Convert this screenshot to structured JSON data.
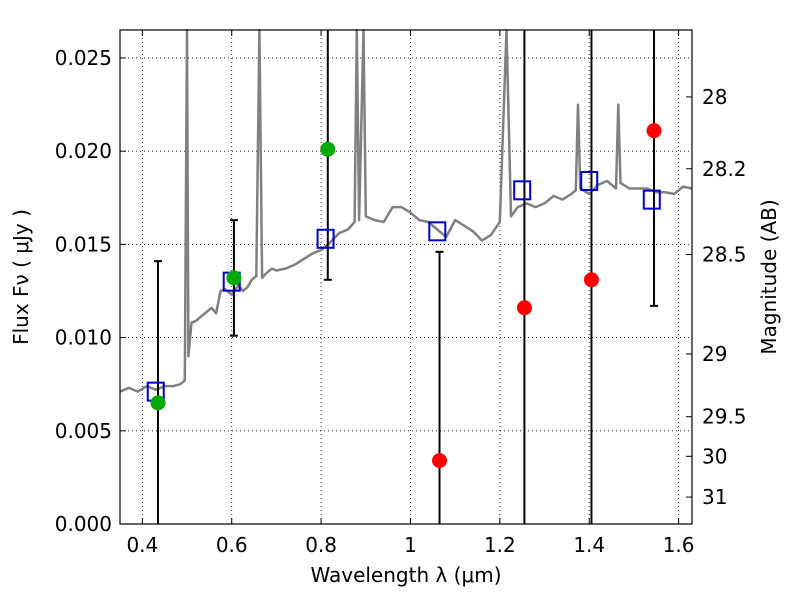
{
  "chart_data": {
    "type": "scatter",
    "xlabel": "Wavelength  λ (μm)",
    "ylabel": "Flux  Fν  ( μJy )",
    "ylabel_right": "Magnitude (AB)",
    "xlim": [
      0.35,
      1.63
    ],
    "ylim": [
      0.0,
      0.0265
    ],
    "grid": true,
    "x_ticks": [
      {
        "value": 0.4,
        "label": "0.4"
      },
      {
        "value": 0.6,
        "label": "0.6"
      },
      {
        "value": 0.8,
        "label": "0.8"
      },
      {
        "value": 1.0,
        "label": "1"
      },
      {
        "value": 1.2,
        "label": "1.2"
      },
      {
        "value": 1.4,
        "label": "1.4"
      },
      {
        "value": 1.6,
        "label": "1.6"
      }
    ],
    "y_ticks": [
      {
        "value": 0.0,
        "label": "0.000"
      },
      {
        "value": 0.005,
        "label": "0.005"
      },
      {
        "value": 0.01,
        "label": "0.010"
      },
      {
        "value": 0.015,
        "label": "0.015"
      },
      {
        "value": 0.02,
        "label": "0.020"
      },
      {
        "value": 0.025,
        "label": "0.025"
      }
    ],
    "right_ticks": [
      {
        "value": 28.0,
        "label": "28"
      },
      {
        "value": 28.2,
        "label": "28.2"
      },
      {
        "value": 28.5,
        "label": "28.5"
      },
      {
        "value": 29.0,
        "label": "29"
      },
      {
        "value": 29.5,
        "label": "29.5"
      },
      {
        "value": 30.0,
        "label": "30"
      },
      {
        "value": 31.0,
        "label": "31"
      }
    ],
    "spectrum": {
      "color": "#808080",
      "points": [
        [
          0.35,
          0.0071
        ],
        [
          0.37,
          0.0073
        ],
        [
          0.39,
          0.0071
        ],
        [
          0.41,
          0.0074
        ],
        [
          0.43,
          0.0072
        ],
        [
          0.45,
          0.0074
        ],
        [
          0.47,
          0.0074
        ],
        [
          0.485,
          0.0075
        ],
        [
          0.495,
          0.0077
        ],
        [
          0.5,
          0.0265
        ],
        [
          0.503,
          0.009
        ],
        [
          0.51,
          0.0108
        ],
        [
          0.52,
          0.0109
        ],
        [
          0.53,
          0.0111
        ],
        [
          0.54,
          0.0113
        ],
        [
          0.555,
          0.0116
        ],
        [
          0.565,
          0.0113
        ],
        [
          0.575,
          0.0125
        ],
        [
          0.585,
          0.0126
        ],
        [
          0.6,
          0.0123
        ],
        [
          0.615,
          0.0128
        ],
        [
          0.625,
          0.0125
        ],
        [
          0.635,
          0.0127
        ],
        [
          0.645,
          0.0131
        ],
        [
          0.655,
          0.0133
        ],
        [
          0.662,
          0.0265
        ],
        [
          0.668,
          0.0132
        ],
        [
          0.675,
          0.0134
        ],
        [
          0.69,
          0.0137
        ],
        [
          0.7,
          0.0136
        ],
        [
          0.72,
          0.0137
        ],
        [
          0.74,
          0.0139
        ],
        [
          0.76,
          0.0142
        ],
        [
          0.78,
          0.0145
        ],
        [
          0.8,
          0.0147
        ],
        [
          0.82,
          0.0151
        ],
        [
          0.84,
          0.0156
        ],
        [
          0.86,
          0.0158
        ],
        [
          0.875,
          0.0162
        ],
        [
          0.88,
          0.0265
        ],
        [
          0.885,
          0.0163
        ],
        [
          0.895,
          0.0265
        ],
        [
          0.9,
          0.0165
        ],
        [
          0.92,
          0.0163
        ],
        [
          0.94,
          0.0162
        ],
        [
          0.96,
          0.017
        ],
        [
          0.98,
          0.017
        ],
        [
          1.0,
          0.0167
        ],
        [
          1.02,
          0.0163
        ],
        [
          1.04,
          0.0162
        ],
        [
          1.06,
          0.0158
        ],
        [
          1.08,
          0.0154
        ],
        [
          1.1,
          0.0163
        ],
        [
          1.12,
          0.016
        ],
        [
          1.14,
          0.0157
        ],
        [
          1.16,
          0.0152
        ],
        [
          1.18,
          0.0155
        ],
        [
          1.2,
          0.0162
        ],
        [
          1.215,
          0.0265
        ],
        [
          1.225,
          0.0165
        ],
        [
          1.24,
          0.017
        ],
        [
          1.26,
          0.0172
        ],
        [
          1.28,
          0.017
        ],
        [
          1.3,
          0.0172
        ],
        [
          1.32,
          0.0176
        ],
        [
          1.34,
          0.0174
        ],
        [
          1.36,
          0.0177
        ],
        [
          1.37,
          0.0179
        ],
        [
          1.375,
          0.0225
        ],
        [
          1.38,
          0.018
        ],
        [
          1.4,
          0.0177
        ],
        [
          1.42,
          0.0182
        ],
        [
          1.44,
          0.0184
        ],
        [
          1.46,
          0.018
        ],
        [
          1.465,
          0.0225
        ],
        [
          1.47,
          0.0183
        ],
        [
          1.49,
          0.018
        ],
        [
          1.51,
          0.018
        ],
        [
          1.53,
          0.018
        ],
        [
          1.55,
          0.0178
        ],
        [
          1.57,
          0.0178
        ],
        [
          1.59,
          0.0177
        ],
        [
          1.61,
          0.0181
        ],
        [
          1.63,
          0.018
        ]
      ]
    },
    "series": [
      {
        "marker": "open-square",
        "color": "#0000cc",
        "points": [
          {
            "x": 0.43,
            "y": 0.0071
          },
          {
            "x": 0.6,
            "y": 0.013
          },
          {
            "x": 0.81,
            "y": 0.0153
          },
          {
            "x": 1.06,
            "y": 0.0157
          },
          {
            "x": 1.25,
            "y": 0.0179
          },
          {
            "x": 1.4,
            "y": 0.0184
          },
          {
            "x": 1.54,
            "y": 0.0174
          }
        ]
      },
      {
        "marker": "filled-circle",
        "color": "#00aa00",
        "points": [
          {
            "x": 0.435,
            "y": 0.0065,
            "err": [
              0.0,
              0.0141
            ]
          },
          {
            "x": 0.605,
            "y": 0.0132,
            "err": [
              0.0101,
              0.0163
            ]
          },
          {
            "x": 0.815,
            "y": 0.0201,
            "err": [
              0.0131,
              0.0265
            ]
          }
        ]
      },
      {
        "marker": "filled-circle",
        "color": "#ff0000",
        "points": [
          {
            "x": 1.065,
            "y": 0.0034,
            "err": [
              0.0,
              0.0146
            ]
          },
          {
            "x": 1.255,
            "y": 0.0116,
            "err": [
              0.0,
              0.0265
            ]
          },
          {
            "x": 1.405,
            "y": 0.0131,
            "err": [
              0.0,
              0.0265
            ]
          },
          {
            "x": 1.545,
            "y": 0.0211,
            "err": [
              0.0117,
              0.0265
            ]
          }
        ]
      }
    ]
  }
}
